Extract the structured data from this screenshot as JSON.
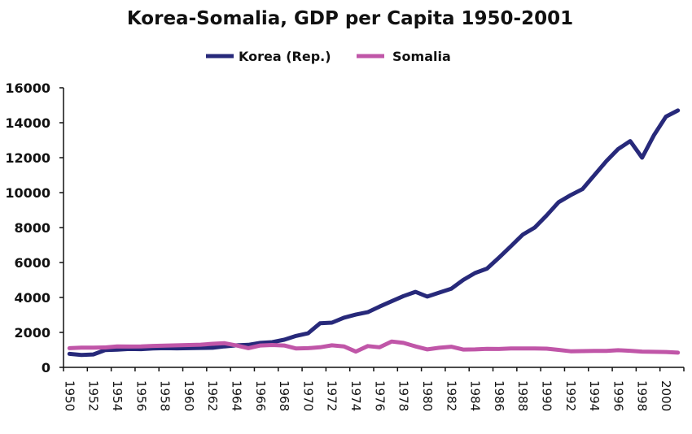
{
  "chart_data": {
    "type": "line",
    "title": "Korea-Somalia, GDP per Capita 1950-2001",
    "xlabel": "",
    "ylabel": "",
    "ylim": [
      0,
      16000
    ],
    "yticks": [
      0,
      2000,
      4000,
      6000,
      8000,
      10000,
      12000,
      14000,
      16000
    ],
    "xtick_labels": [
      "1950",
      "1952",
      "1954",
      "1956",
      "1958",
      "1960",
      "1962",
      "1964",
      "1966",
      "1968",
      "1970",
      "1972",
      "1974",
      "1976",
      "1978",
      "1980",
      "1982",
      "1984",
      "1986",
      "1988",
      "1990",
      "1992",
      "1994",
      "1996",
      "1998",
      "2000"
    ],
    "grid": false,
    "legend_position": "top-center",
    "x": [
      1950,
      1951,
      1952,
      1953,
      1954,
      1955,
      1956,
      1957,
      1958,
      1959,
      1960,
      1961,
      1962,
      1963,
      1964,
      1965,
      1966,
      1967,
      1968,
      1969,
      1970,
      1971,
      1972,
      1973,
      1974,
      1975,
      1976,
      1977,
      1978,
      1979,
      1980,
      1981,
      1982,
      1983,
      1984,
      1985,
      1986,
      1987,
      1988,
      1989,
      1990,
      1991,
      1992,
      1993,
      1994,
      1995,
      1996,
      1997,
      1998,
      1999,
      2000,
      2001
    ],
    "series": [
      {
        "name": "Korea (Rep.)",
        "color": "#27297a",
        "values": [
          770,
          710,
          740,
          990,
          1010,
          1050,
          1040,
          1080,
          1100,
          1090,
          1100,
          1110,
          1120,
          1200,
          1260,
          1290,
          1400,
          1440,
          1580,
          1800,
          1950,
          2520,
          2560,
          2840,
          3020,
          3160,
          3480,
          3780,
          4080,
          4320,
          4050,
          4280,
          4500,
          5000,
          5400,
          5650,
          6280,
          6930,
          7600,
          8000,
          8700,
          9450,
          9850,
          10200,
          11000,
          11800,
          12500,
          12950,
          12000,
          13300,
          14350,
          14700
        ]
      },
      {
        "name": "Somalia",
        "color": "#c056a8",
        "values": [
          1100,
          1130,
          1130,
          1140,
          1200,
          1190,
          1200,
          1230,
          1240,
          1260,
          1280,
          1300,
          1350,
          1380,
          1250,
          1100,
          1250,
          1280,
          1250,
          1080,
          1100,
          1150,
          1260,
          1200,
          900,
          1220,
          1150,
          1480,
          1400,
          1200,
          1030,
          1120,
          1180,
          1020,
          1030,
          1060,
          1050,
          1080,
          1080,
          1080,
          1070,
          1000,
          920,
          930,
          940,
          940,
          980,
          950,
          900,
          890,
          880,
          840
        ]
      }
    ]
  }
}
